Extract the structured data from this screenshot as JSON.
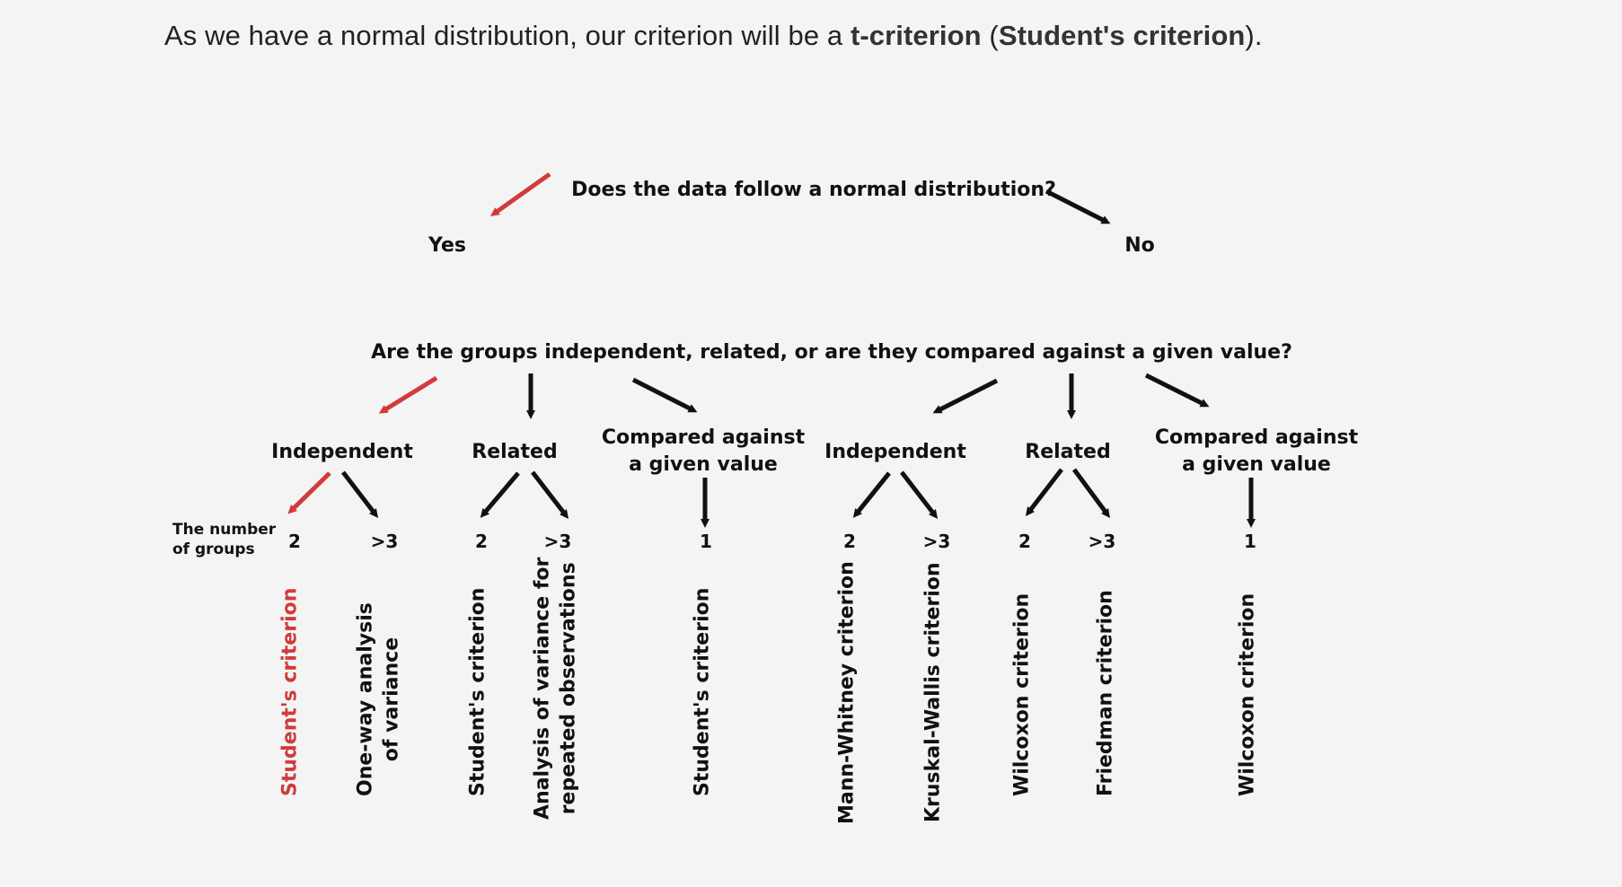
{
  "intro": {
    "part1": "As we have a normal distribution, our criterion will be a ",
    "bold1": "t-criterion",
    "part2": " (",
    "bold2": "Student's criterion",
    "part3": ")."
  },
  "diagram": {
    "q1": "Does the data follow a normal distribution?",
    "yes": "Yes",
    "no": "No",
    "q2": "Are the groups independent, related, or are they compared against a given value?",
    "groups_label_line1": "The number",
    "groups_label_line2": "of groups",
    "left": {
      "independent": "Independent",
      "related": "Related",
      "compared_line1": "Compared against",
      "compared_line2": "a given value"
    },
    "right": {
      "independent": "Independent",
      "related": "Related",
      "compared_line1": "Compared against",
      "compared_line2": "a given value"
    },
    "numbers": [
      "2",
      ">3",
      "2",
      ">3",
      "1",
      "2",
      ">3",
      "2",
      ">3",
      "1"
    ],
    "results": [
      {
        "line1": "Student's criterion",
        "line2": ""
      },
      {
        "line1": "One-way analysis",
        "line2": "of variance"
      },
      {
        "line1": "Student's criterion",
        "line2": ""
      },
      {
        "line1": "Analysis of variance for",
        "line2": "repeated observations"
      },
      {
        "line1": "Student's criterion",
        "line2": ""
      },
      {
        "line1": "Mann-Whitney criterion",
        "line2": ""
      },
      {
        "line1": "Kruskal-Wallis criterion",
        "line2": ""
      },
      {
        "line1": "Wilcoxon criterion",
        "line2": ""
      },
      {
        "line1": "Friedman criterion",
        "line2": ""
      },
      {
        "line1": "Wilcoxon criterion",
        "line2": ""
      }
    ],
    "colors": {
      "highlight": "#d23b3b",
      "arrow": "#111111"
    }
  }
}
